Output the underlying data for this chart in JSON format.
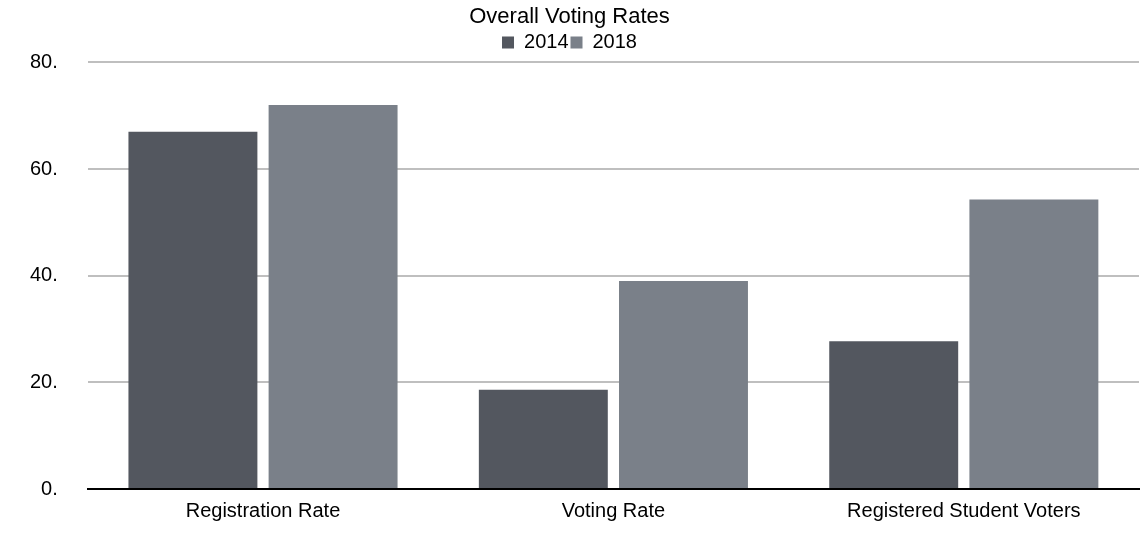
{
  "chart_data": {
    "type": "bar",
    "title": "Overall Voting Rates",
    "categories": [
      "Registration Rate",
      "Voting Rate",
      "Registered Student Voters"
    ],
    "series": [
      {
        "name": "2014",
        "color": "#53575f",
        "values": [
          67,
          18.6,
          27.7
        ]
      },
      {
        "name": "2018",
        "color": "#7a8089",
        "values": [
          72,
          39,
          54.3
        ]
      }
    ],
    "ylim": [
      0,
      80
    ],
    "yticks": [
      {
        "value": 0,
        "label": "0."
      },
      {
        "value": 20,
        "label": "20."
      },
      {
        "value": 40,
        "label": "40."
      },
      {
        "value": 60,
        "label": "60."
      },
      {
        "value": 80,
        "label": "80."
      }
    ],
    "grid": "y",
    "legend": "top"
  }
}
